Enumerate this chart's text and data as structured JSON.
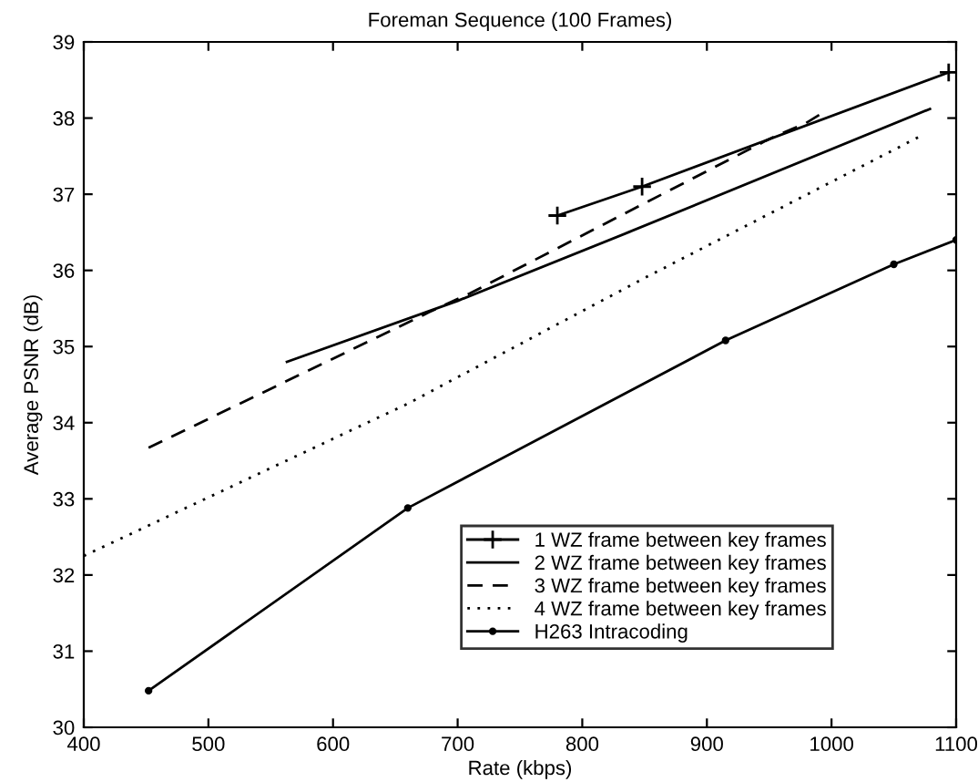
{
  "chart_data": {
    "type": "line",
    "title": "Foreman Sequence (100 Frames)",
    "xlabel": "Rate (kbps)",
    "ylabel": "Average PSNR (dB)",
    "xlim": [
      400,
      1100
    ],
    "ylim": [
      30,
      39
    ],
    "xticks": [
      400,
      500,
      600,
      700,
      800,
      900,
      1000,
      1100
    ],
    "yticks": [
      30,
      31,
      32,
      33,
      34,
      35,
      36,
      37,
      38,
      39
    ],
    "grid": false,
    "legend": "bottom right",
    "series": [
      {
        "name": "1 WZ frame between key frames",
        "color": "#000000",
        "marker": "cross",
        "line_style": "solid",
        "x": [
          780,
          848,
          1094
        ],
        "values": [
          36.72,
          37.1,
          38.6
        ]
      },
      {
        "name": "2 WZ frame between key frames",
        "color": "#000000",
        "marker": "none",
        "line_style": "solid",
        "x": [
          563,
          700,
          837,
          1079
        ],
        "values": [
          34.8,
          35.6,
          36.5,
          38.12
        ]
      },
      {
        "name": "3 WZ frame between key frames",
        "color": "#000000",
        "marker": "none",
        "line_style": "dashed",
        "x": [
          452,
          677,
          710,
          947,
          960,
          979,
          995
        ],
        "values": [
          33.67,
          35.45,
          35.7,
          37.7,
          37.8,
          37.93,
          38.09
        ]
      },
      {
        "name": "4 WZ frame between key frames",
        "color": "#000000",
        "marker": "none",
        "line_style": "dotted",
        "x": [
          400,
          660,
          850,
          1071
        ],
        "values": [
          32.25,
          34.25,
          35.9,
          37.76
        ]
      },
      {
        "name": "H263 Intracoding",
        "color": "#000000",
        "marker": "circle",
        "line_style": "solid",
        "x": [
          452,
          660,
          915,
          1050,
          1100
        ],
        "values": [
          30.48,
          32.88,
          35.08,
          36.08,
          36.4
        ]
      }
    ]
  }
}
